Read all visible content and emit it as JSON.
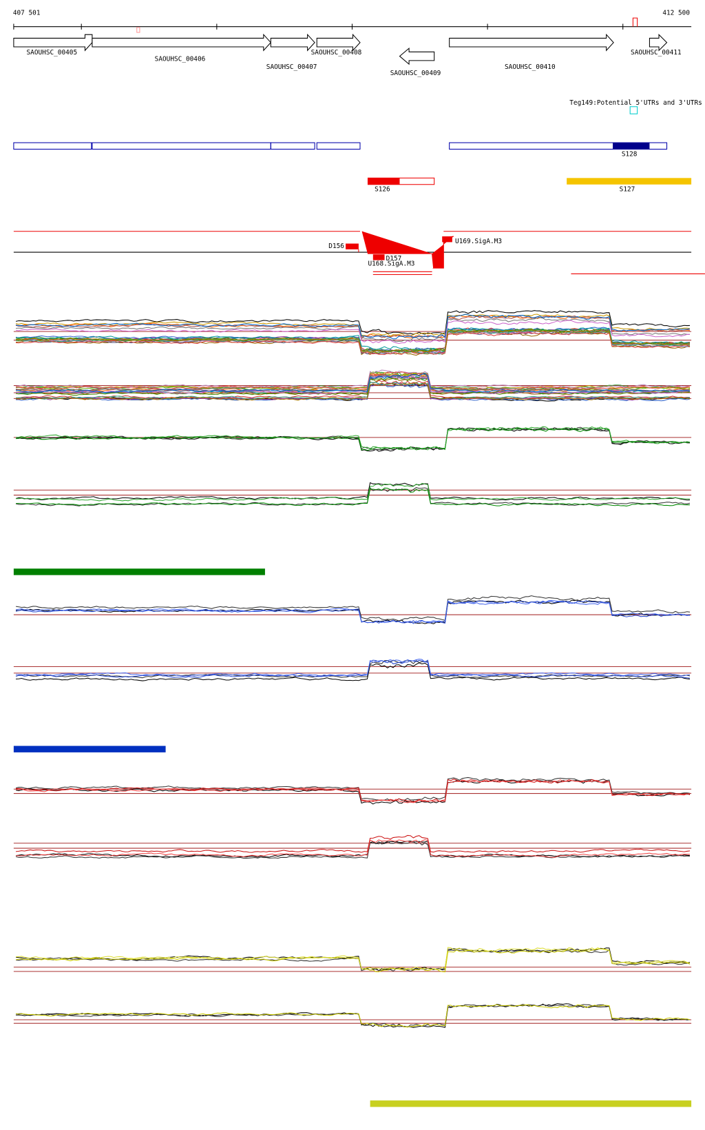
{
  "coordinates": {
    "start": "407 501",
    "end": "412 500"
  },
  "genes": [
    {
      "label": "SAOUHSC_00405"
    },
    {
      "label": "SAOUHSC_00406"
    },
    {
      "label": "SAOUHSC_00407"
    },
    {
      "label": "SAOUHSC_00408"
    },
    {
      "label": "SAOUHSC_00409"
    },
    {
      "label": "SAOUHSC_00410"
    },
    {
      "label": "SAOUHSC_00411"
    }
  ],
  "annotations": {
    "utr_track": "Teg149:Potential 5'UTRs and 3'UTRs",
    "segments": [
      "S128",
      "S126",
      "S127"
    ],
    "features": [
      "D156",
      "D157",
      "U168.SigA.M3",
      "U169.SigA.M3"
    ]
  }
}
